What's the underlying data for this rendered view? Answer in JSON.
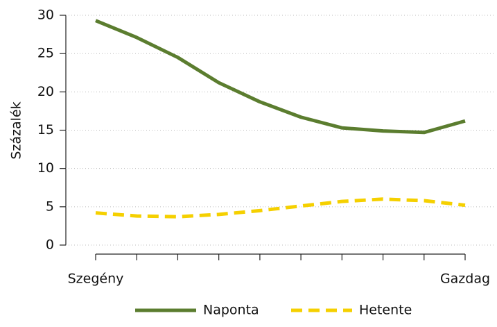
{
  "chart_data": {
    "type": "line",
    "y_label": "Százalék",
    "categories": [
      "Szegény",
      null,
      null,
      null,
      null,
      null,
      null,
      null,
      null,
      "Gazdag"
    ],
    "series": [
      {
        "name": "Naponta",
        "color": "#5b7d2f",
        "dash": "solid",
        "values": [
          29.3,
          27.1,
          24.5,
          21.2,
          18.7,
          16.7,
          15.3,
          14.9,
          14.7,
          16.2
        ]
      },
      {
        "name": "Hetente",
        "color": "#f5d000",
        "dash": "dashed",
        "values": [
          4.2,
          3.8,
          3.7,
          4.0,
          4.5,
          5.1,
          5.7,
          6.0,
          5.8,
          5.2
        ]
      }
    ],
    "ylim": [
      0,
      30
    ],
    "yticks": [
      0,
      5,
      10,
      15,
      20,
      25,
      30
    ],
    "grid": true,
    "legend": "bottom"
  }
}
